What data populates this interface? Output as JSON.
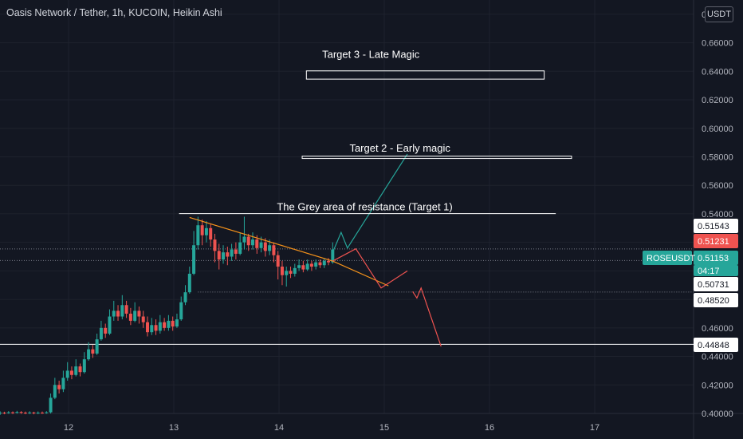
{
  "header": {
    "title": "Oasis Network / Tether, 1h, KUCOIN, Heikin Ashi",
    "currency_badge": "USDT"
  },
  "colors": {
    "background": "#131722",
    "up": "#26a69a",
    "down": "#ef5350",
    "trendline": "#f7931a",
    "bull_path": "#26a69a",
    "bear_path": "#ef5350",
    "annotation": "#ffffff",
    "axis_text": "#b2b5be"
  },
  "chart_data": {
    "type": "candlestick",
    "title": "Oasis Network / Tether, 1h, KUCOIN, Heikin Ashi",
    "ylim": [
      0.4,
      0.69
    ],
    "y_ticks": [
      "0.40000",
      "0.42000",
      "0.44000",
      "0.46000",
      "0.48000",
      "0.50000",
      "0.52000",
      "0.54000",
      "0.56000",
      "0.58000",
      "0.60000",
      "0.62000",
      "0.64000",
      "0.66000",
      "0.68000"
    ],
    "x_ticks": [
      "12",
      "13",
      "14",
      "15",
      "16",
      "17"
    ],
    "x_tick_values": [
      12,
      13,
      14,
      15,
      16,
      17
    ],
    "xlim": [
      11.35,
      18.0
    ],
    "candles": [
      [
        11.35,
        0.4002,
        0.4006,
        0.399,
        0.4015
      ],
      [
        11.39,
        0.4006,
        0.4004,
        0.3995,
        0.4012
      ],
      [
        11.43,
        0.4004,
        0.4008,
        0.3998,
        0.4016
      ],
      [
        11.47,
        0.4008,
        0.4005,
        0.3996,
        0.4014
      ],
      [
        11.51,
        0.4005,
        0.401,
        0.3999,
        0.4018
      ],
      [
        11.55,
        0.401,
        0.4006,
        0.3997,
        0.4016
      ],
      [
        11.59,
        0.4006,
        0.4004,
        0.3995,
        0.4013
      ],
      [
        11.63,
        0.4004,
        0.4007,
        0.3996,
        0.4015
      ],
      [
        11.67,
        0.4007,
        0.4003,
        0.3994,
        0.4012
      ],
      [
        11.71,
        0.4003,
        0.4006,
        0.3996,
        0.4014
      ],
      [
        11.75,
        0.4006,
        0.4005,
        0.3997,
        0.4013
      ],
      [
        11.79,
        0.4005,
        0.4008,
        0.3998,
        0.4016
      ],
      [
        11.83,
        0.4008,
        0.411,
        0.4,
        0.414
      ],
      [
        11.87,
        0.411,
        0.42,
        0.41,
        0.425
      ],
      [
        11.91,
        0.42,
        0.417,
        0.414,
        0.423
      ],
      [
        11.95,
        0.417,
        0.425,
        0.415,
        0.43
      ],
      [
        11.99,
        0.425,
        0.43,
        0.423,
        0.436
      ],
      [
        12.03,
        0.43,
        0.427,
        0.424,
        0.433
      ],
      [
        12.07,
        0.427,
        0.433,
        0.426,
        0.438
      ],
      [
        12.11,
        0.433,
        0.429,
        0.426,
        0.435
      ],
      [
        12.15,
        0.429,
        0.438,
        0.428,
        0.443
      ],
      [
        12.19,
        0.438,
        0.445,
        0.437,
        0.45
      ],
      [
        12.23,
        0.445,
        0.442,
        0.439,
        0.448
      ],
      [
        12.27,
        0.442,
        0.452,
        0.441,
        0.456
      ],
      [
        12.31,
        0.452,
        0.46,
        0.451,
        0.465
      ],
      [
        12.35,
        0.46,
        0.456,
        0.453,
        0.463
      ],
      [
        12.39,
        0.456,
        0.468,
        0.455,
        0.473
      ],
      [
        12.43,
        0.468,
        0.472,
        0.465,
        0.479
      ],
      [
        12.47,
        0.472,
        0.468,
        0.465,
        0.476
      ],
      [
        12.51,
        0.468,
        0.476,
        0.466,
        0.483
      ],
      [
        12.55,
        0.476,
        0.47,
        0.467,
        0.479
      ],
      [
        12.59,
        0.47,
        0.465,
        0.462,
        0.474
      ],
      [
        12.63,
        0.465,
        0.472,
        0.464,
        0.478
      ],
      [
        12.67,
        0.472,
        0.468,
        0.463,
        0.475
      ],
      [
        12.71,
        0.468,
        0.464,
        0.46,
        0.472
      ],
      [
        12.75,
        0.464,
        0.457,
        0.454,
        0.468
      ],
      [
        12.79,
        0.457,
        0.462,
        0.455,
        0.467
      ],
      [
        12.83,
        0.462,
        0.458,
        0.455,
        0.466
      ],
      [
        12.87,
        0.458,
        0.464,
        0.456,
        0.469
      ],
      [
        12.91,
        0.464,
        0.46,
        0.458,
        0.467
      ],
      [
        12.95,
        0.46,
        0.465,
        0.458,
        0.469
      ],
      [
        12.99,
        0.465,
        0.461,
        0.458,
        0.468
      ],
      [
        13.03,
        0.461,
        0.466,
        0.46,
        0.47
      ],
      [
        13.07,
        0.466,
        0.478,
        0.465,
        0.482
      ],
      [
        13.11,
        0.478,
        0.485,
        0.476,
        0.49
      ],
      [
        13.15,
        0.485,
        0.498,
        0.484,
        0.503
      ],
      [
        13.19,
        0.498,
        0.518,
        0.497,
        0.528
      ],
      [
        13.23,
        0.518,
        0.532,
        0.515,
        0.538
      ],
      [
        13.27,
        0.532,
        0.525,
        0.518,
        0.536
      ],
      [
        13.31,
        0.525,
        0.53,
        0.52,
        0.535
      ],
      [
        13.35,
        0.53,
        0.522,
        0.517,
        0.533
      ],
      [
        13.39,
        0.522,
        0.514,
        0.506,
        0.526
      ],
      [
        13.43,
        0.514,
        0.508,
        0.501,
        0.519
      ],
      [
        13.47,
        0.508,
        0.513,
        0.505,
        0.518
      ],
      [
        13.51,
        0.513,
        0.51,
        0.504,
        0.517
      ],
      [
        13.55,
        0.51,
        0.515,
        0.507,
        0.519
      ],
      [
        13.59,
        0.515,
        0.512,
        0.508,
        0.52
      ],
      [
        13.63,
        0.512,
        0.52,
        0.511,
        0.527
      ],
      [
        13.67,
        0.52,
        0.524,
        0.515,
        0.538
      ],
      [
        13.71,
        0.524,
        0.518,
        0.514,
        0.526
      ],
      [
        13.75,
        0.518,
        0.522,
        0.515,
        0.527
      ],
      [
        13.79,
        0.522,
        0.516,
        0.512,
        0.525
      ],
      [
        13.83,
        0.516,
        0.52,
        0.513,
        0.524
      ],
      [
        13.87,
        0.52,
        0.514,
        0.51,
        0.523
      ],
      [
        13.91,
        0.514,
        0.518,
        0.511,
        0.522
      ],
      [
        13.95,
        0.518,
        0.511,
        0.506,
        0.52
      ],
      [
        13.99,
        0.511,
        0.503,
        0.494,
        0.514
      ],
      [
        14.03,
        0.503,
        0.497,
        0.49,
        0.507
      ],
      [
        14.07,
        0.497,
        0.5,
        0.489,
        0.503
      ],
      [
        14.11,
        0.5,
        0.498,
        0.495,
        0.503
      ],
      [
        14.15,
        0.498,
        0.502,
        0.496,
        0.505
      ],
      [
        14.19,
        0.502,
        0.504,
        0.5,
        0.508
      ],
      [
        14.23,
        0.504,
        0.501,
        0.499,
        0.507
      ],
      [
        14.27,
        0.501,
        0.505,
        0.5,
        0.508
      ],
      [
        14.31,
        0.505,
        0.503,
        0.5,
        0.507
      ],
      [
        14.35,
        0.503,
        0.506,
        0.501,
        0.508
      ],
      [
        14.39,
        0.506,
        0.504,
        0.502,
        0.508
      ],
      [
        14.43,
        0.504,
        0.507,
        0.502,
        0.509
      ],
      [
        14.47,
        0.507,
        0.506,
        0.504,
        0.509
      ],
      [
        14.51,
        0.506,
        0.515,
        0.505,
        0.52
      ]
    ],
    "horizontal_levels": [
      {
        "label": "0.51543",
        "value": 0.51543,
        "style": "dotted",
        "x_start": 0.0
      },
      {
        "label": "0.50731",
        "value": 0.50731,
        "style": "dotted",
        "x_start": 0.0
      },
      {
        "label": "0.48520",
        "value": 0.4852,
        "style": "dotted",
        "x_start": 13.23
      },
      {
        "label": "0.44848",
        "value": 0.44848,
        "style": "solid",
        "x_start": 0.0
      }
    ],
    "price_tags": [
      {
        "label": "0.51543",
        "value": 0.51543,
        "style": "dark"
      },
      {
        "label": "0.51231",
        "value": 0.51231,
        "style": "red"
      },
      {
        "label": "0.51153",
        "value": 0.51153,
        "style": "green"
      },
      {
        "label": "04:17",
        "value": 0.5054,
        "style": "green-sub"
      },
      {
        "label": "0.50731",
        "value": 0.50731,
        "style": "dark"
      },
      {
        "label": "0.48520",
        "value": 0.4852,
        "style": "dark"
      },
      {
        "label": "0.44848",
        "value": 0.44848,
        "style": "dark"
      }
    ],
    "symbol_tag": {
      "label": "ROSEUSDT",
      "value": 0.51153
    },
    "annotations": [
      {
        "text": "Target 3 - Late Magic",
        "x": 14.41,
        "y": 0.6495,
        "box": [
          [
            14.26,
            0.6403
          ],
          [
            16.52,
            0.6345
          ]
        ]
      },
      {
        "text": "Target 2 - Early magic",
        "x": 14.67,
        "y": 0.5835,
        "box": [
          [
            14.22,
            0.5805
          ],
          [
            16.78,
            0.579
          ]
        ]
      },
      {
        "text": "The Grey area of resistance (Target 1)",
        "x": 13.98,
        "y": 0.5425,
        "line": [
          [
            13.05,
            0.5402
          ],
          [
            16.63,
            0.5402
          ]
        ]
      }
    ],
    "trendlines": [
      {
        "name": "descending-resistance",
        "color_key": "trendline",
        "points": [
          [
            13.15,
            0.5375
          ],
          [
            14.51,
            0.5069
          ],
          [
            15.04,
            0.4895
          ]
        ]
      },
      {
        "name": "bull-projection",
        "color_key": "bull_path",
        "points": [
          [
            14.51,
            0.513
          ],
          [
            14.59,
            0.527
          ],
          [
            14.65,
            0.516
          ],
          [
            15.22,
            0.582
          ]
        ]
      },
      {
        "name": "bear-projection",
        "color_key": "bear_path",
        "points": [
          [
            14.51,
            0.5069
          ],
          [
            14.73,
            0.5155
          ],
          [
            14.97,
            0.488
          ],
          [
            15.22,
            0.5
          ]
        ]
      },
      {
        "name": "bear-extension",
        "color_key": "bear_path",
        "points": [
          [
            15.27,
            0.4855
          ],
          [
            15.31,
            0.481
          ],
          [
            15.35,
            0.488
          ],
          [
            15.54,
            0.447
          ]
        ]
      }
    ]
  }
}
